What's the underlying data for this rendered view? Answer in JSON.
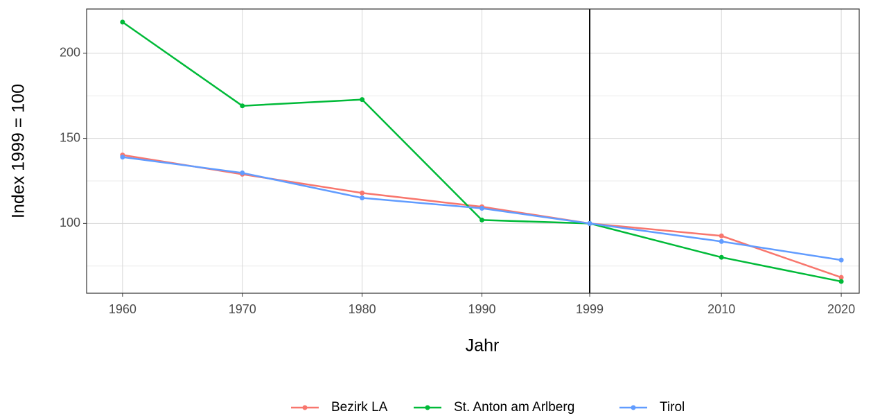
{
  "chart_data": {
    "type": "line",
    "x_label": "Jahr",
    "y_label": "Index 1999 = 100",
    "x": [
      1960,
      1970,
      1980,
      1990,
      1999,
      2010,
      2020
    ],
    "series": [
      {
        "name": "Bezirk LA",
        "color": "#F8766D",
        "values": [
          140.2,
          128.9,
          117.9,
          109.8,
          100,
          92.7,
          68.3
        ]
      },
      {
        "name": "St. Anton am Arlberg",
        "color": "#00BA38",
        "values": [
          218.3,
          169.1,
          172.8,
          102,
          100,
          80.1,
          65.9
        ]
      },
      {
        "name": "Tirol",
        "color": "#619CFF",
        "values": [
          139,
          129.7,
          115,
          108.9,
          100,
          89.4,
          78.5
        ]
      }
    ],
    "xlim": [
      1957,
      2021.5
    ],
    "xticks": [
      1960,
      1970,
      1980,
      1990,
      1999,
      2010,
      2020
    ],
    "ylim": [
      59,
      226
    ],
    "yticks": [
      100,
      150,
      200
    ],
    "y_minor_ticks": [
      75,
      125,
      175
    ],
    "vline": 1999,
    "grid": true,
    "legend": "bottom"
  }
}
